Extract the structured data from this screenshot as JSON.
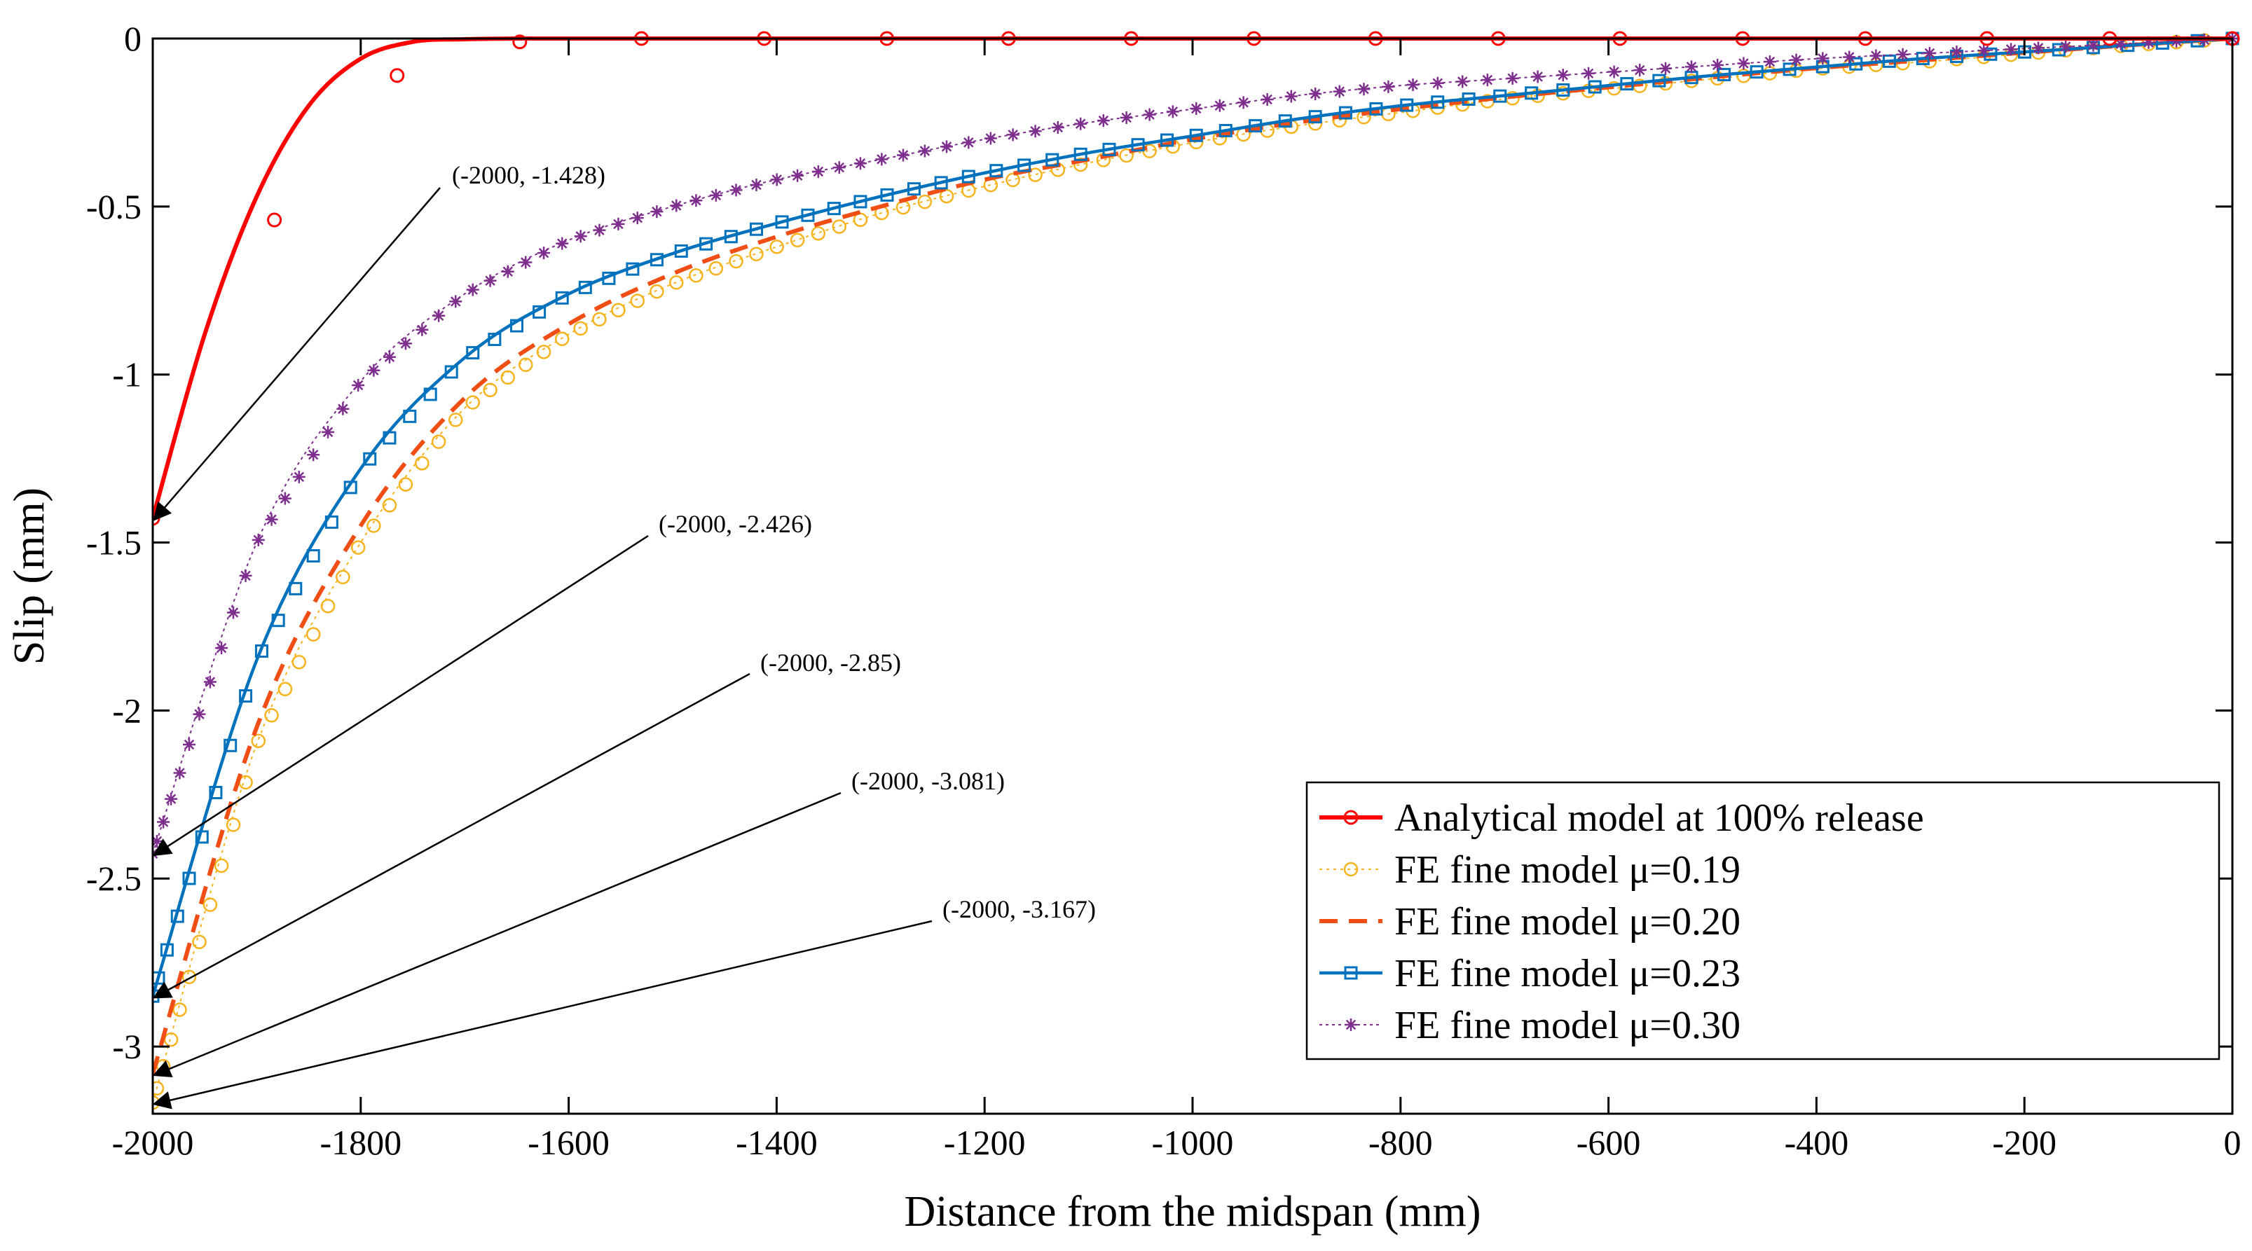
{
  "chart_data": {
    "type": "line",
    "title": "",
    "xlabel": "Distance from the midspan (mm)",
    "ylabel": "Slip (mm)",
    "xlim": [
      -2000,
      0
    ],
    "ylim": [
      -3.2,
      0
    ],
    "xticks": [
      -2000,
      -1800,
      -1600,
      -1400,
      -1200,
      -1000,
      -800,
      -600,
      -400,
      -200,
      0
    ],
    "yticks": [
      0,
      -0.5,
      -1,
      -1.5,
      -2,
      -2.5,
      -3
    ],
    "xtick_labels": [
      "-2000",
      "-1800",
      "-1600",
      "-1400",
      "-1200",
      "-1000",
      "-800",
      "-600",
      "-400",
      "-200",
      "0"
    ],
    "ytick_labels": [
      "0",
      "-0.5",
      "-1",
      "-1.5",
      "-2",
      "-2.5",
      "-3"
    ],
    "grid": false,
    "legend_position": "bottom-right",
    "series": [
      {
        "name": "Analytical model at 100% release",
        "color": "#ff0000",
        "line_style": "solid",
        "marker": "circle",
        "x": [
          -2000,
          -1950,
          -1900,
          -1850,
          -1800,
          -1750,
          -1700,
          -1650,
          -1600,
          -1400,
          -1200,
          -1000,
          -800,
          -600,
          -400,
          -200,
          0
        ],
        "y": [
          -1.428,
          -0.88,
          -0.47,
          -0.2,
          -0.06,
          -0.01,
          -0.002,
          0,
          0,
          0,
          0,
          0,
          0,
          0,
          0,
          0,
          0
        ],
        "marker_x": [
          -2000,
          -1883,
          -1765,
          -1647,
          -1530,
          -1412,
          -1294,
          -1177,
          -1059,
          -941,
          -824,
          -706,
          -589,
          -471,
          -353,
          -236,
          -118,
          0
        ],
        "marker_y": [
          -1.428,
          -0.54,
          -0.11,
          -0.01,
          0,
          0,
          0,
          0,
          0,
          0,
          0,
          0,
          0,
          0,
          0,
          0,
          0,
          0
        ]
      },
      {
        "name": "FE fine model μ=0.19",
        "color": "#f5b31e",
        "line_style": "dotted",
        "marker": "circle",
        "x": [
          -2000,
          -1900,
          -1800,
          -1700,
          -1600,
          -1500,
          -1400,
          -1300,
          -1200,
          -1100,
          -1000,
          -900,
          -800,
          -700,
          -600,
          -500,
          -400,
          -300,
          -200,
          -100,
          0
        ],
        "y": [
          -3.167,
          -2.1,
          -1.5,
          -1.1,
          -0.88,
          -0.73,
          -0.62,
          -0.52,
          -0.44,
          -0.37,
          -0.31,
          -0.26,
          -0.22,
          -0.18,
          -0.15,
          -0.12,
          -0.09,
          -0.07,
          -0.045,
          -0.02,
          0
        ]
      },
      {
        "name": "FE fine model μ=0.20",
        "color": "#f04e14",
        "line_style": "dashed",
        "marker": "none",
        "x": [
          -2000,
          -1900,
          -1800,
          -1700,
          -1600,
          -1500,
          -1400,
          -1300,
          -1200,
          -1100,
          -1000,
          -900,
          -800,
          -700,
          -600,
          -500,
          -400,
          -300,
          -200,
          -100,
          0
        ],
        "y": [
          -3.081,
          -2.05,
          -1.45,
          -1.07,
          -0.85,
          -0.7,
          -0.59,
          -0.5,
          -0.42,
          -0.36,
          -0.3,
          -0.25,
          -0.21,
          -0.175,
          -0.145,
          -0.115,
          -0.088,
          -0.065,
          -0.042,
          -0.02,
          0
        ]
      },
      {
        "name": "FE fine model μ=0.23",
        "color": "#0072bd",
        "line_style": "solid",
        "marker": "square",
        "x": [
          -2000,
          -1900,
          -1800,
          -1700,
          -1600,
          -1500,
          -1400,
          -1300,
          -1200,
          -1100,
          -1000,
          -900,
          -800,
          -700,
          -600,
          -500,
          -400,
          -300,
          -200,
          -100,
          0
        ],
        "y": [
          -2.85,
          -1.85,
          -1.28,
          -0.95,
          -0.76,
          -0.64,
          -0.55,
          -0.47,
          -0.4,
          -0.34,
          -0.29,
          -0.24,
          -0.2,
          -0.17,
          -0.14,
          -0.11,
          -0.085,
          -0.06,
          -0.04,
          -0.02,
          0
        ]
      },
      {
        "name": "FE fine model μ=0.30",
        "color": "#7e2f8e",
        "line_style": "dotted",
        "marker": "asterisk",
        "x": [
          -2000,
          -1900,
          -1800,
          -1700,
          -1600,
          -1500,
          -1400,
          -1300,
          -1200,
          -1100,
          -1000,
          -900,
          -800,
          -700,
          -600,
          -500,
          -400,
          -300,
          -200,
          -100,
          0
        ],
        "y": [
          -2.426,
          -1.5,
          -1.02,
          -0.76,
          -0.6,
          -0.5,
          -0.42,
          -0.36,
          -0.3,
          -0.25,
          -0.21,
          -0.17,
          -0.14,
          -0.12,
          -0.1,
          -0.08,
          -0.06,
          -0.045,
          -0.03,
          -0.015,
          0
        ]
      }
    ],
    "annotations": [
      {
        "text": "(-2000, -1.428)",
        "point_x": -2000,
        "point_y": -1.428
      },
      {
        "text": "(-2000, -2.426)",
        "point_x": -2000,
        "point_y": -2.426
      },
      {
        "text": "(-2000, -2.85)",
        "point_x": -2000,
        "point_y": -2.85
      },
      {
        "text": "(-2000, -3.081)",
        "point_x": -2000,
        "point_y": -3.081
      },
      {
        "text": "(-2000, -3.167)",
        "point_x": -2000,
        "point_y": -3.167
      }
    ]
  }
}
